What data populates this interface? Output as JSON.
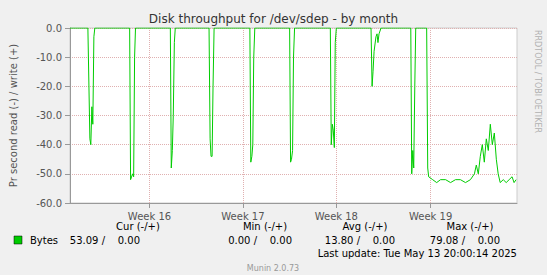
{
  "chart_data": {
    "type": "line",
    "title": "Disk throughput for /dev/sdep - by month",
    "ylabel": "Pr second read (-) / write (+)",
    "x": [
      0,
      1.34,
      1.49,
      1.56,
      1.64,
      1.71,
      1.79,
      1.86,
      4.47,
      4.54,
      4.69,
      4.77,
      4.84,
      4.91,
      7.52,
      7.59,
      7.67,
      7.74,
      7.82,
      7.89,
      10.42,
      10.5,
      10.57,
      10.65,
      10.72,
      10.8,
      13.48,
      13.55,
      13.63,
      13.7,
      13.77,
      13.85,
      16.46,
      16.53,
      16.6,
      16.68,
      16.75,
      16.83,
      19.51,
      19.58,
      19.66,
      19.73,
      19.81,
      19.88,
      19.96,
      22.56,
      22.64,
      22.71,
      22.79,
      22.93,
      23.01,
      23.08,
      23.16,
      23.31,
      25.54,
      25.61,
      25.69,
      25.76,
      25.84,
      25.91,
      26.73,
      26.81,
      26.88,
      27.18,
      27.48,
      27.77,
      28.15,
      28.52,
      28.89,
      29.26,
      29.64,
      30.01,
      30.31,
      30.45,
      30.6,
      30.75,
      30.9,
      31.05,
      31.2,
      31.35,
      31.5,
      31.65,
      31.8,
      31.95,
      32.09,
      32.24,
      32.47,
      32.69,
      32.91,
      33.13,
      33.28,
      33.43
    ],
    "series": [
      {
        "name": "Bytes",
        "color": "#00cc00",
        "values": [
          0,
          0,
          -38,
          -40,
          -27,
          -33,
          -3,
          0,
          0,
          -52,
          -50,
          -51,
          -10,
          0,
          0,
          -48,
          -42,
          -30,
          -5,
          0,
          0,
          -38,
          -44,
          -44,
          -20,
          0,
          0,
          -46,
          -44,
          -40,
          -10,
          0,
          0,
          -46,
          -45,
          -42,
          -10,
          0,
          0,
          -40,
          -33,
          -35,
          -41,
          -5,
          0,
          0,
          -20,
          -15,
          -8,
          -3,
          -2,
          -5,
          -2,
          0,
          0,
          -50,
          -42,
          -48,
          -20,
          0,
          0,
          -48,
          -51,
          -52,
          -53,
          -52,
          -52,
          -53,
          -52,
          -52,
          -53,
          -52,
          -50,
          -47,
          -50,
          -44,
          -40,
          -46,
          -38,
          -42,
          -33,
          -40,
          -36,
          -45,
          -50,
          -53,
          -52,
          -53,
          -52,
          -51,
          -53,
          -52
        ]
      }
    ],
    "xlim": [
      0,
      33.5
    ],
    "xticks": [
      {
        "value": 5.96,
        "label": "Week 16"
      },
      {
        "value": 12.96,
        "label": "Week 17"
      },
      {
        "value": 19.96,
        "label": "Week 18"
      },
      {
        "value": 27.03,
        "label": "Week 19"
      }
    ],
    "ylim": [
      -60,
      0
    ],
    "yticks": [
      {
        "value": -60,
        "label": "-60.0"
      },
      {
        "value": -50,
        "label": "-50.0"
      },
      {
        "value": -40,
        "label": "-40.0"
      },
      {
        "value": -30,
        "label": "-30.0"
      },
      {
        "value": -20,
        "label": "-20.0"
      },
      {
        "value": -10,
        "label": "-10.0"
      },
      {
        "value": 0,
        "label": "0.0"
      }
    ],
    "grid": true
  },
  "side_text": "RRDTOOL / TOBI OETIKER",
  "summary": {
    "headers": [
      "Cur (-/+)",
      "Min (-/+)",
      "Avg (-/+)",
      "Max (-/+)"
    ],
    "row": [
      "53.09 /    0.00",
      "0.00 /    0.00",
      "13.80 /    0.00",
      "79.08 /    0.00"
    ]
  },
  "last_update": "Last update: Tue May 13 20:00:14 2025",
  "footer": "Munin 2.0.73"
}
